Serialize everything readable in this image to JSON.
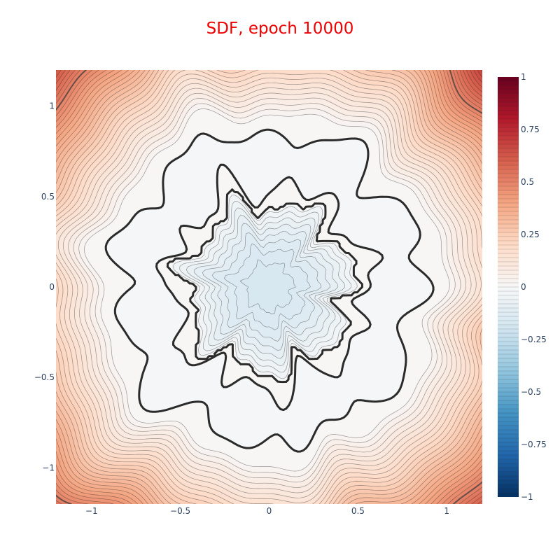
{
  "chart_data": {
    "type": "contour",
    "title": "SDF, epoch 10000",
    "title_color": "#ee0000",
    "xlabel": "",
    "ylabel": "",
    "xlim": [
      -1.2,
      1.2
    ],
    "ylim": [
      -1.2,
      1.2
    ],
    "x_ticks": [
      -1,
      -0.5,
      0,
      0.5,
      1
    ],
    "x_tick_labels": [
      "−1",
      "−0.5",
      "0",
      "0.5",
      "1"
    ],
    "y_ticks": [
      1,
      0.5,
      0,
      -0.5,
      -1
    ],
    "y_tick_labels": [
      "1",
      "0.5",
      "0",
      "−0.5",
      "−1"
    ],
    "zlim": [
      -1,
      1
    ],
    "contour_step": 0.02,
    "bold_contours": [
      0
    ],
    "colorbar": {
      "ticks": [
        1,
        0.75,
        0.5,
        0.25,
        0,
        -0.25,
        -0.5,
        -0.75,
        -1
      ],
      "tick_labels": [
        "1",
        "0.75",
        "0.5",
        "0.25",
        "0",
        "−0.25",
        "−0.5",
        "−0.75",
        "−1"
      ],
      "colorscale": "RdBu_r"
    },
    "shape": {
      "description_units": "data",
      "ring_inner_radius": 0.46,
      "ring_outer_radius": 0.95,
      "core_min_value": -0.17,
      "outer_max_value": 0.85
    }
  }
}
